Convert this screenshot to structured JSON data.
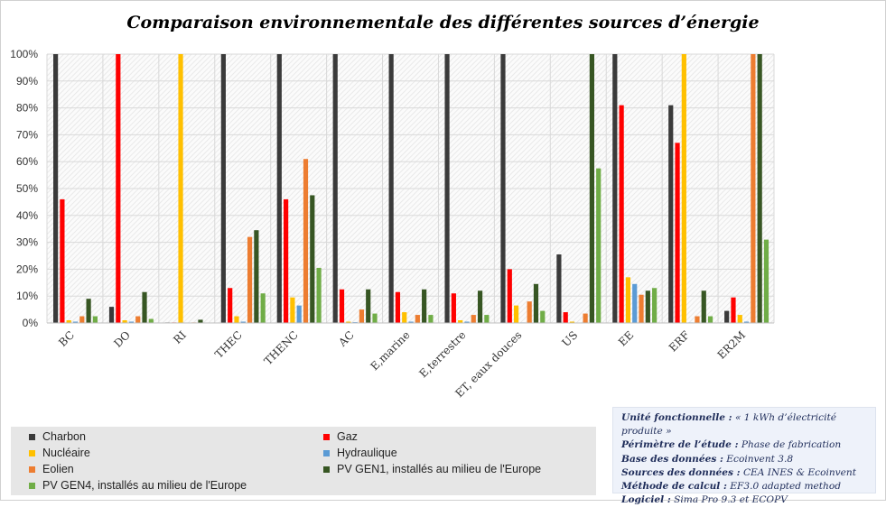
{
  "chart_data": {
    "type": "bar",
    "title": "Comparaison environnementale des différentes sources d’énergie",
    "categories": [
      "BC",
      "DO",
      "RI",
      "THEC",
      "THENC",
      "AC",
      "E,marine",
      "E,terrestre",
      "ET, eaux douces",
      "US",
      "EE",
      "ERF",
      "ER2M"
    ],
    "ylim": [
      0,
      100
    ],
    "yticks": [
      "0%",
      "10%",
      "20%",
      "30%",
      "40%",
      "50%",
      "60%",
      "70%",
      "80%",
      "90%",
      "100%"
    ],
    "grid": true,
    "legend_position": "bottom-left",
    "series": [
      {
        "name": "Charbon",
        "color": "#3a3a3a",
        "values": [
          100,
          6,
          0.2,
          100,
          100,
          100,
          100,
          100,
          100,
          25.5,
          100,
          81,
          4.5
        ]
      },
      {
        "name": "Gaz",
        "color": "#ff0000",
        "values": [
          46,
          100,
          0.2,
          13,
          46,
          12.5,
          11.5,
          11,
          20,
          4,
          81,
          67,
          9.5
        ]
      },
      {
        "name": "Nucléaire",
        "color": "#ffc000",
        "values": [
          1,
          1,
          100,
          2.5,
          9.5,
          0.5,
          4,
          1,
          6.5,
          0.5,
          17,
          100,
          3
        ]
      },
      {
        "name": "Hydraulique",
        "color": "#5b9bd5",
        "values": [
          0.5,
          0.5,
          0,
          0.5,
          6.5,
          0.3,
          0.5,
          0.5,
          0.2,
          0,
          14.5,
          0.2,
          0.5
        ]
      },
      {
        "name": "Eolien",
        "color": "#ed7d31",
        "values": [
          2.5,
          2.5,
          0.2,
          32,
          61,
          5,
          3,
          3,
          8,
          3.5,
          10.5,
          2.5,
          100
        ]
      },
      {
        "name": "PV GEN1, installés au milieu de l'Europe",
        "color": "#375623",
        "values": [
          9,
          11.5,
          1.2,
          34.5,
          47.5,
          12.5,
          12.5,
          12,
          14.5,
          100,
          12,
          12,
          100
        ]
      },
      {
        "name": "PV GEN4, installés au milieu de l'Europe",
        "color": "#70ad47",
        "values": [
          2.5,
          1.5,
          0,
          11,
          20.5,
          3.5,
          3,
          3,
          4.5,
          57.5,
          13,
          2.5,
          31
        ]
      }
    ]
  },
  "info": [
    {
      "label": "Unité fonctionnelle :",
      "value": " « 1 kWh d’électricité produite  »"
    },
    {
      "label": "Périmètre de l’étude :",
      "value": " Phase de fabrication"
    },
    {
      "label": "Base des données :",
      "value": " Ecoinvent 3.8"
    },
    {
      "label": "Sources des données :",
      "value": " CEA INES & Ecoinvent"
    },
    {
      "label": "Méthode de calcul :",
      "value": " EF3.0 adapted method"
    },
    {
      "label": "Logiciel :",
      "value": " Sima Pro 9.3 et ECOPV"
    }
  ]
}
